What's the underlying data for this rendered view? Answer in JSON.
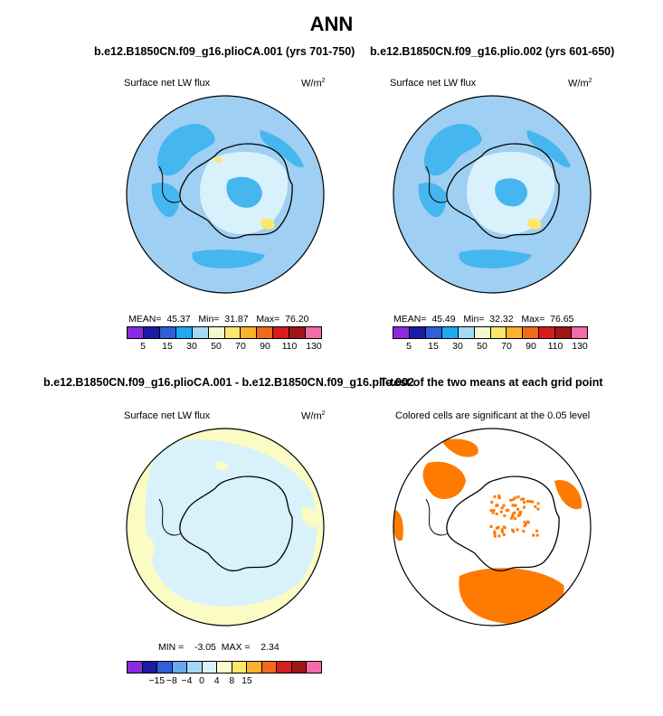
{
  "main_title": "ANN",
  "panels": [
    {
      "title": "b.e12.B1850CN.f09_g16.plioCA.001 (yrs 701-750)",
      "field": "Surface net LW flux",
      "units": "W/m",
      "units_sup": "2",
      "stats": {
        "mean_label": "MEAN=",
        "mean": "45.37",
        "min_label": "Min=",
        "min": "31.87",
        "max_label": "Max=",
        "max": "76.20"
      },
      "colorbar_ticks": [
        "5",
        "15",
        "30",
        "50",
        "70",
        "90",
        "110",
        "130"
      ]
    },
    {
      "title": "b.e12.B1850CN.f09_g16.plio.002 (yrs 601-650)",
      "field": "Surface net LW flux",
      "units": "W/m",
      "units_sup": "2",
      "stats": {
        "mean_label": "MEAN=",
        "mean": "45.49",
        "min_label": "Min=",
        "min": "32.32",
        "max_label": "Max=",
        "max": "76.65"
      },
      "colorbar_ticks": [
        "5",
        "15",
        "30",
        "50",
        "70",
        "90",
        "110",
        "130"
      ]
    },
    {
      "title": "b.e12.B1850CN.f09_g16.plioCA.001 - b.e12.B1850CN.f09_g16.plio.002",
      "field": "Surface net LW flux",
      "units": "W/m",
      "units_sup": "2",
      "stats": {
        "min_label": "MIN =",
        "min": "-3.05",
        "max_label": "MAX =",
        "max": "2.34"
      },
      "colorbar_ticks": [
        "−15",
        "−8",
        "−4",
        "0",
        "4",
        "8",
        "15"
      ]
    },
    {
      "title": "T-test of the two means at each grid point",
      "subtitle": "Colored cells are significant at the 0.05 level"
    }
  ],
  "colors": {
    "abs_scale": [
      "#8a2be2",
      "#1a1aa6",
      "#2e5fd8",
      "#1eaaf0",
      "#a4d8f5",
      "#f2f7d0",
      "#fde76a",
      "#fbb12c",
      "#f06a1c",
      "#d81b1b",
      "#a01515",
      "#f36aa8"
    ],
    "diff_scale": [
      "#8a2be2",
      "#1a1aa6",
      "#2e5fd8",
      "#6aa8f0",
      "#a4d8f5",
      "#d8f1fb",
      "#fbfbd0",
      "#fde76a",
      "#fbb12c",
      "#f06a1c",
      "#d81b1b",
      "#a01515",
      "#f36aa8"
    ],
    "ocean_abs": "#9fcff2",
    "blue_mid": "#45b6ef",
    "ice_pale": "#d8f1fb",
    "yellow_pale": "#fbfbc4",
    "signif": "#ff7a00"
  },
  "chart_data": [
    {
      "type": "heatmap",
      "title": "b.e12.B1850CN.f09_g16.plioCA.001 (yrs 701-750)",
      "field": "Surface net LW flux",
      "units": "W/m2",
      "mean": 45.37,
      "min": 31.87,
      "max": 76.2,
      "levels": [
        5,
        10,
        15,
        20,
        30,
        40,
        50,
        60,
        70,
        80,
        90,
        100,
        110,
        120,
        130
      ]
    },
    {
      "type": "heatmap",
      "title": "b.e12.B1850CN.f09_g16.plio.002 (yrs 601-650)",
      "field": "Surface net LW flux",
      "units": "W/m2",
      "mean": 45.49,
      "min": 32.32,
      "max": 76.65,
      "levels": [
        5,
        10,
        15,
        20,
        30,
        40,
        50,
        60,
        70,
        80,
        90,
        100,
        110,
        120,
        130
      ]
    },
    {
      "type": "heatmap",
      "title": "b.e12.B1850CN.f09_g16.plioCA.001 - b.e12.B1850CN.f09_g16.plio.002",
      "field": "Surface net LW flux",
      "units": "W/m2",
      "min": -3.05,
      "max": 2.34,
      "levels": [
        -15,
        -8,
        -4,
        0,
        4,
        8,
        15
      ]
    },
    {
      "type": "heatmap",
      "title": "T-test of the two means at each grid point",
      "note": "Colored cells are significant at the 0.05 level"
    }
  ]
}
